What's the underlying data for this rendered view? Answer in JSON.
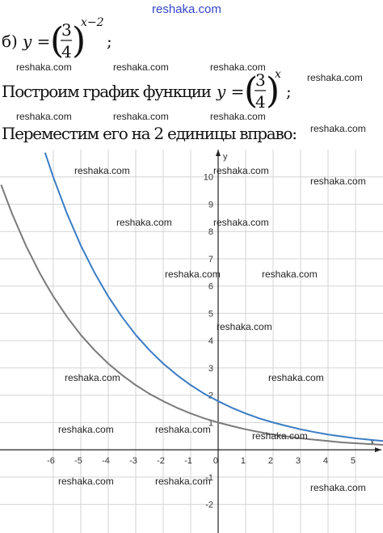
{
  "site": "reshaka.com",
  "line1": {
    "label": "б)",
    "lhs": "y =",
    "num": "3",
    "den": "4",
    "power": "x−2",
    "end": ";"
  },
  "line2": {
    "text": "Построим график функции",
    "lhs": "y =",
    "num": "3",
    "den": "4",
    "power": "x",
    "end": ";"
  },
  "line3": "Переместим его на 2 единицы вправо:",
  "watermarks": [
    "reshaka.com",
    "reshaka.com",
    "reshaka.com",
    "reshaka.com",
    "reshaka.com",
    "reshaka.com",
    "reshaka.com",
    "reshaka.com",
    "reshaka.com",
    "reshaka.com",
    "reshaka.com",
    "reshaka.com",
    "reshaka.com",
    "reshaka.com",
    "reshaka.com",
    "reshaka.com",
    "reshaka.com",
    "reshaka.com",
    "reshaka.com",
    "reshaka.com",
    "reshaka.com",
    "reshaka.com",
    "reshaka.com",
    "reshaka.com"
  ],
  "chart_data": {
    "type": "line",
    "x_label": "x",
    "y_label": "y",
    "x": [
      -7.9,
      -7.5,
      -7,
      -6.5,
      -6.3,
      -6,
      -5.5,
      -5,
      -4.5,
      -4,
      -3.5,
      -3,
      -2.5,
      -2,
      -1.5,
      -1,
      -0.5,
      0,
      0.5,
      1,
      1.5,
      2,
      2.5,
      3,
      3.5,
      4,
      4.5,
      5,
      5.5,
      6
    ],
    "series": [
      {
        "color": "#7a7a7a",
        "values": [
          9.71,
          8.65,
          7.49,
          6.49,
          6.13,
          5.62,
          4.87,
          4.21,
          3.65,
          3.16,
          2.74,
          2.37,
          2.05,
          1.78,
          1.54,
          1.33,
          1.15,
          1,
          0.87,
          0.75,
          0.65,
          0.56,
          0.49,
          0.42,
          0.37,
          0.32,
          0.27,
          0.24,
          0.21,
          0.18
        ]
      },
      {
        "color": "#3b7cc4",
        "values": [
          null,
          null,
          null,
          null,
          10.89,
          9.99,
          8.65,
          7.49,
          6.49,
          5.62,
          4.87,
          4.21,
          3.65,
          3.16,
          2.74,
          2.37,
          2.05,
          1.78,
          1.54,
          1.33,
          1.15,
          1,
          0.87,
          0.75,
          0.65,
          0.56,
          0.49,
          0.42,
          0.37,
          0.32
        ]
      }
    ],
    "xlim": [
      -7.94,
      6
    ],
    "ylim": [
      -3.05,
      11
    ],
    "xticks": [
      -6,
      -5,
      -4,
      -3,
      -2,
      -1,
      0,
      1,
      2,
      3,
      4,
      5
    ],
    "yticks": [
      -2,
      -1,
      1,
      2,
      3,
      4,
      5,
      6,
      7,
      8,
      9,
      10
    ],
    "grid": true
  }
}
